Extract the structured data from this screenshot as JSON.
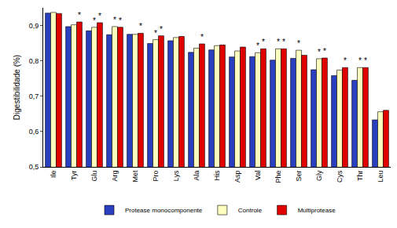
{
  "chart_data": {
    "type": "bar",
    "y_label": "Digestibilidade (%)",
    "categories": [
      "Ile",
      "Tyr",
      "Glu",
      "Arg",
      "Met",
      "Pro",
      "Lys",
      "Ala",
      "His",
      "Asp",
      "Val",
      "Phe",
      "Ser",
      "Gly",
      "Cys",
      "Thr",
      "Leu"
    ],
    "series": [
      {
        "name": "Protease monocomponente",
        "color": "#2a3fc0",
        "values": [
          0.935,
          0.897,
          0.885,
          0.874,
          0.875,
          0.849,
          0.857,
          0.824,
          0.831,
          0.811,
          0.812,
          0.802,
          0.807,
          0.775,
          0.758,
          0.745,
          0.633
        ]
      },
      {
        "name": "Controle",
        "color": "#ffffc0",
        "values": [
          0.937,
          0.902,
          0.895,
          0.897,
          0.875,
          0.86,
          0.866,
          0.836,
          0.843,
          0.828,
          0.823,
          0.834,
          0.83,
          0.806,
          0.774,
          0.781,
          0.656
        ]
      },
      {
        "name": "Multiprotease",
        "color": "#e00000",
        "values": [
          0.934,
          0.91,
          0.908,
          0.895,
          0.878,
          0.871,
          0.869,
          0.848,
          0.845,
          0.839,
          0.834,
          0.834,
          0.816,
          0.808,
          0.781,
          0.781,
          0.66
        ]
      }
    ],
    "annotations": [
      {
        "category": "Tyr",
        "series": "Multiprotease",
        "text": "*"
      },
      {
        "category": "Glu",
        "series": "Controle",
        "text": "*"
      },
      {
        "category": "Glu",
        "series": "Multiprotease",
        "text": "*"
      },
      {
        "category": "Arg",
        "series": "Controle",
        "text": "*"
      },
      {
        "category": "Arg",
        "series": "Multiprotease",
        "text": "*"
      },
      {
        "category": "Met",
        "series": "Multiprotease",
        "text": "*"
      },
      {
        "category": "Pro",
        "series": "Controle",
        "text": "*"
      },
      {
        "category": "Pro",
        "series": "Multiprotease",
        "text": "*"
      },
      {
        "category": "Ala",
        "series": "Multiprotease",
        "text": "*"
      },
      {
        "category": "Val",
        "series": "Controle",
        "text": "*"
      },
      {
        "category": "Val",
        "series": "Multiprotease",
        "text": "*"
      },
      {
        "category": "Phe",
        "series": "Controle",
        "text": "*"
      },
      {
        "category": "Phe",
        "series": "Multiprotease",
        "text": "*"
      },
      {
        "category": "Ser",
        "series": "Controle",
        "text": "*"
      },
      {
        "category": "Gly",
        "series": "Controle",
        "text": "*"
      },
      {
        "category": "Gly",
        "series": "Multiprotease",
        "text": "*"
      },
      {
        "category": "Cys",
        "series": "Multiprotease",
        "text": "*"
      },
      {
        "category": "Thr",
        "series": "Controle",
        "text": "*"
      },
      {
        "category": "Thr",
        "series": "Multiprotease",
        "text": "*"
      }
    ],
    "ylim": [
      0.5,
      0.95
    ],
    "yticks": [
      {
        "value": 0.5,
        "label": "0,5"
      },
      {
        "value": 0.6,
        "label": "0,6"
      },
      {
        "value": 0.7,
        "label": "0,7"
      },
      {
        "value": 0.8,
        "label": "0,8"
      },
      {
        "value": 0.9,
        "label": "0,9"
      }
    ],
    "grid": false,
    "legend": "bottom"
  }
}
